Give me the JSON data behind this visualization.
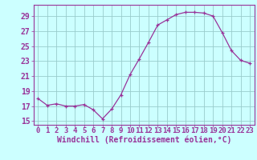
{
  "x": [
    0,
    1,
    2,
    3,
    4,
    5,
    6,
    7,
    8,
    9,
    10,
    11,
    12,
    13,
    14,
    15,
    16,
    17,
    18,
    19,
    20,
    21,
    22,
    23
  ],
  "y": [
    18.0,
    17.1,
    17.3,
    17.0,
    17.0,
    17.2,
    16.5,
    15.3,
    16.6,
    18.5,
    21.2,
    23.3,
    25.5,
    27.8,
    28.5,
    29.2,
    29.5,
    29.5,
    29.4,
    29.0,
    26.8,
    24.4,
    23.1,
    22.7
  ],
  "xlim": [
    -0.5,
    23.5
  ],
  "ylim": [
    14.5,
    30.5
  ],
  "yticks": [
    15,
    17,
    19,
    21,
    23,
    25,
    27,
    29
  ],
  "xticks": [
    0,
    1,
    2,
    3,
    4,
    5,
    6,
    7,
    8,
    9,
    10,
    11,
    12,
    13,
    14,
    15,
    16,
    17,
    18,
    19,
    20,
    21,
    22,
    23
  ],
  "line_color": "#993399",
  "marker_color": "#993399",
  "bg_color": "#ccffff",
  "grid_color": "#99cccc",
  "xlabel": "Windchill (Refroidissement éolien,°C)",
  "xlabel_fontsize": 7.0,
  "tick_fontsize": 6.5,
  "ytick_fontsize": 7.0
}
